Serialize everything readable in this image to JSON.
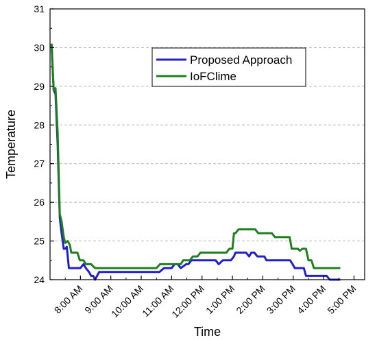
{
  "chart_data": {
    "type": "line",
    "title": "",
    "xlabel": "Time",
    "ylabel": "Temperature",
    "ylim": [
      24,
      31
    ],
    "yticks": [
      24,
      25,
      26,
      27,
      28,
      29,
      30,
      31
    ],
    "xlim": [
      7.0,
      17.35
    ],
    "xticks": [
      {
        "value": 8,
        "label": "8:00 AM"
      },
      {
        "value": 9,
        "label": "9:00 AM"
      },
      {
        "value": 10,
        "label": "10:00 AM"
      },
      {
        "value": 11,
        "label": "11:00 AM"
      },
      {
        "value": 12,
        "label": "12:00 PM"
      },
      {
        "value": 13,
        "label": "1:00 PM"
      },
      {
        "value": 14,
        "label": "2:00 PM"
      },
      {
        "value": 15,
        "label": "3:00 PM"
      },
      {
        "value": 16,
        "label": "4:00 PM"
      },
      {
        "value": 17,
        "label": "5:00 PM"
      }
    ],
    "grid": "horizontal dashed",
    "legend_position": "top-right",
    "series": [
      {
        "name": "Proposed Approach",
        "color": "#1f1fcc",
        "points": [
          [
            7.05,
            30.1
          ],
          [
            7.12,
            28.9
          ],
          [
            7.18,
            28.8
          ],
          [
            7.25,
            27.5
          ],
          [
            7.32,
            25.6
          ],
          [
            7.38,
            25.2
          ],
          [
            7.45,
            24.8
          ],
          [
            7.5,
            24.8
          ],
          [
            7.55,
            24.85
          ],
          [
            7.62,
            24.3
          ],
          [
            7.7,
            24.3
          ],
          [
            7.78,
            24.3
          ],
          [
            7.85,
            24.3
          ],
          [
            8.0,
            24.3
          ],
          [
            8.1,
            24.4
          ],
          [
            8.18,
            24.3
          ],
          [
            8.28,
            24.2
          ],
          [
            8.35,
            24.1
          ],
          [
            8.42,
            24.1
          ],
          [
            8.48,
            24.0
          ],
          [
            8.55,
            24.1
          ],
          [
            8.62,
            24.2
          ],
          [
            9.0,
            24.2
          ],
          [
            10.0,
            24.2
          ],
          [
            10.6,
            24.2
          ],
          [
            10.75,
            24.3
          ],
          [
            10.95,
            24.3
          ],
          [
            11.0,
            24.3
          ],
          [
            11.1,
            24.4
          ],
          [
            11.2,
            24.4
          ],
          [
            11.3,
            24.3
          ],
          [
            11.48,
            24.4
          ],
          [
            11.55,
            24.4
          ],
          [
            11.65,
            24.5
          ],
          [
            12.0,
            24.5
          ],
          [
            12.45,
            24.5
          ],
          [
            12.55,
            24.4
          ],
          [
            12.68,
            24.5
          ],
          [
            12.95,
            24.5
          ],
          [
            13.05,
            24.6
          ],
          [
            13.1,
            24.7
          ],
          [
            13.45,
            24.7
          ],
          [
            13.55,
            24.6
          ],
          [
            13.62,
            24.7
          ],
          [
            13.72,
            24.7
          ],
          [
            13.82,
            24.6
          ],
          [
            14.05,
            24.6
          ],
          [
            14.12,
            24.5
          ],
          [
            14.8,
            24.5
          ],
          [
            14.9,
            24.5
          ],
          [
            14.98,
            24.4
          ],
          [
            15.05,
            24.3
          ],
          [
            15.35,
            24.3
          ],
          [
            15.42,
            24.1
          ],
          [
            15.55,
            24.1
          ],
          [
            16.0,
            24.1
          ],
          [
            16.1,
            24.1
          ],
          [
            16.2,
            24.0
          ],
          [
            16.55,
            24.0
          ]
        ]
      },
      {
        "name": "IoFClime",
        "color": "#1f7f1f",
        "points": [
          [
            7.05,
            30.1
          ],
          [
            7.12,
            28.9
          ],
          [
            7.18,
            28.95
          ],
          [
            7.25,
            27.8
          ],
          [
            7.32,
            25.7
          ],
          [
            7.38,
            25.5
          ],
          [
            7.45,
            25.1
          ],
          [
            7.5,
            24.95
          ],
          [
            7.58,
            25.0
          ],
          [
            7.65,
            24.9
          ],
          [
            7.7,
            24.7
          ],
          [
            7.8,
            24.7
          ],
          [
            7.9,
            24.7
          ],
          [
            7.98,
            24.5
          ],
          [
            8.1,
            24.5
          ],
          [
            8.18,
            24.4
          ],
          [
            8.35,
            24.4
          ],
          [
            8.48,
            24.3
          ],
          [
            9.0,
            24.3
          ],
          [
            10.0,
            24.3
          ],
          [
            10.5,
            24.3
          ],
          [
            10.62,
            24.4
          ],
          [
            11.0,
            24.4
          ],
          [
            11.3,
            24.4
          ],
          [
            11.38,
            24.5
          ],
          [
            11.6,
            24.5
          ],
          [
            11.7,
            24.6
          ],
          [
            11.85,
            24.6
          ],
          [
            11.95,
            24.7
          ],
          [
            12.0,
            24.7
          ],
          [
            12.8,
            24.7
          ],
          [
            12.9,
            24.8
          ],
          [
            13.0,
            24.8
          ],
          [
            13.05,
            25.2
          ],
          [
            13.1,
            25.2
          ],
          [
            13.2,
            25.3
          ],
          [
            13.75,
            25.3
          ],
          [
            13.85,
            25.2
          ],
          [
            14.3,
            25.2
          ],
          [
            14.4,
            25.1
          ],
          [
            14.8,
            25.1
          ],
          [
            14.88,
            25.1
          ],
          [
            14.95,
            24.8
          ],
          [
            15.0,
            24.8
          ],
          [
            15.15,
            24.8
          ],
          [
            15.22,
            24.75
          ],
          [
            15.3,
            24.8
          ],
          [
            15.42,
            24.8
          ],
          [
            15.5,
            24.5
          ],
          [
            15.6,
            24.5
          ],
          [
            15.68,
            24.3
          ],
          [
            16.0,
            24.3
          ],
          [
            16.55,
            24.3
          ]
        ]
      }
    ]
  }
}
